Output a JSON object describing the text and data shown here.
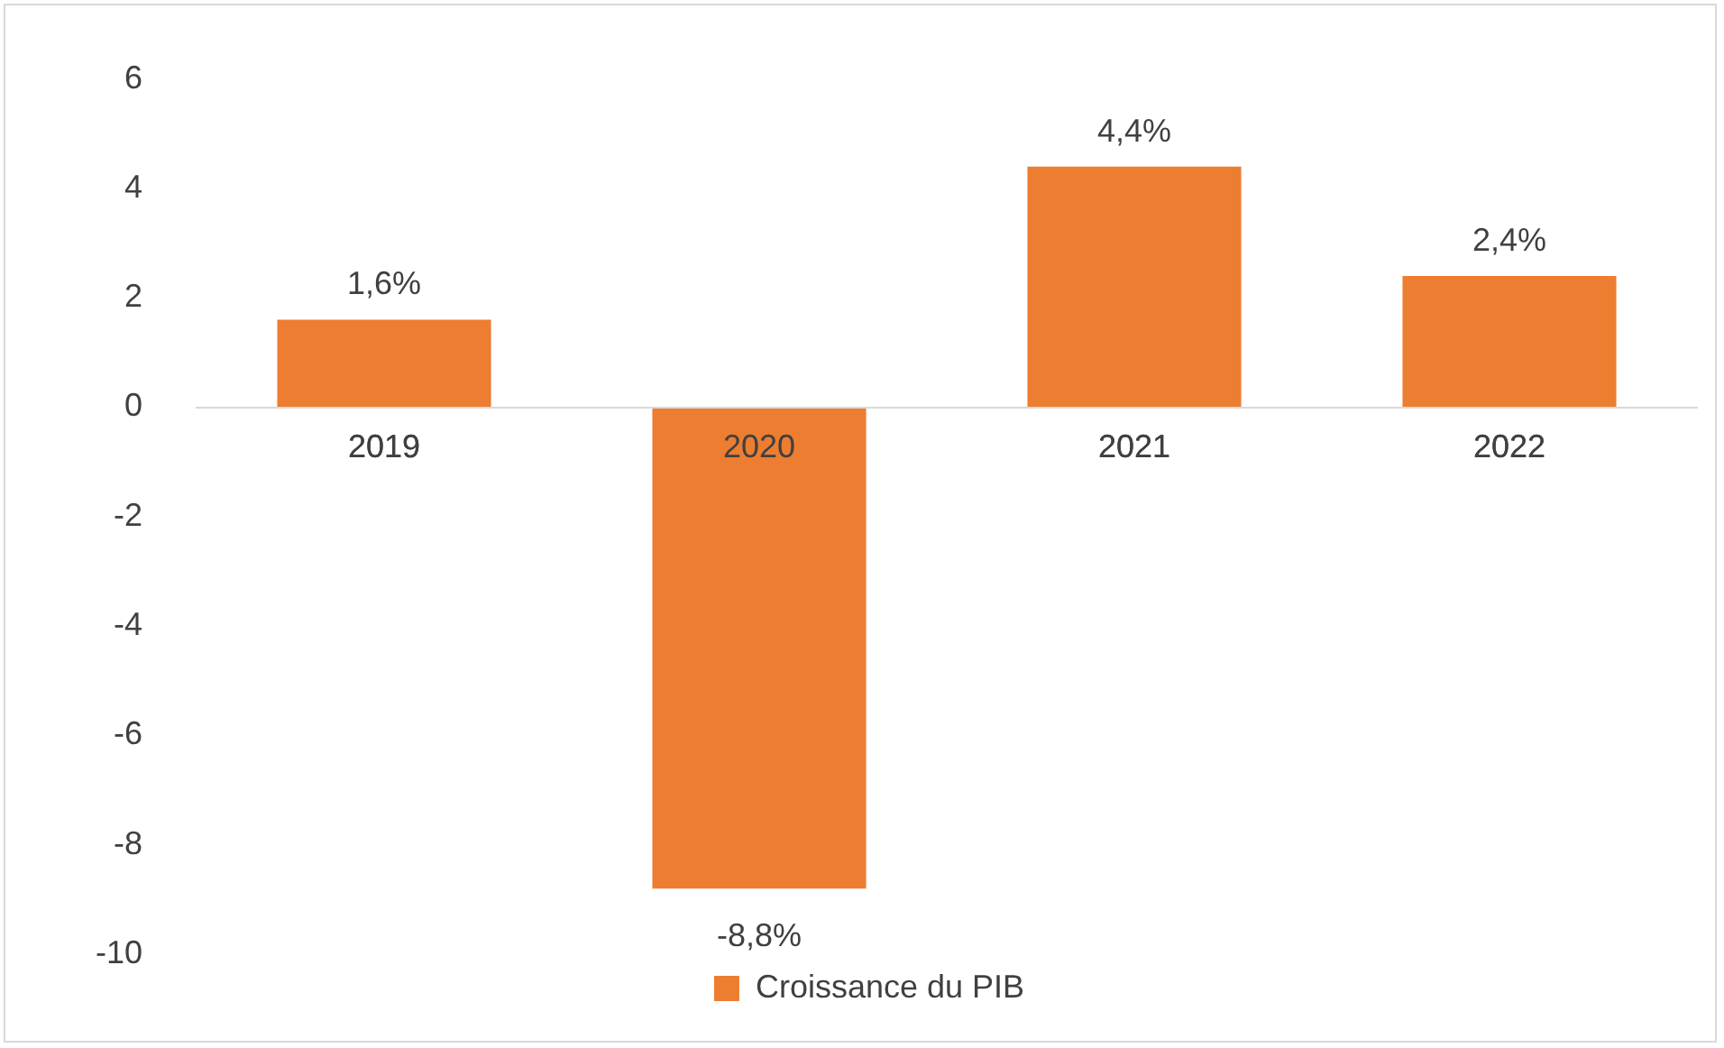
{
  "chart_data": {
    "type": "bar",
    "categories": [
      "2019",
      "2020",
      "2021",
      "2022"
    ],
    "series": [
      {
        "name": "Croissance du PIB",
        "color": "#ed7d31",
        "values": [
          1.6,
          -8.8,
          4.4,
          2.4
        ],
        "value_labels": [
          "1,6%",
          "-8,8%",
          "4,4%",
          "2,4%"
        ]
      }
    ],
    "ylim": [
      -10,
      6
    ],
    "yticks": [
      -10,
      -8,
      -6,
      -4,
      -2,
      0,
      2,
      4,
      6
    ],
    "grid": false,
    "legend": "bottom"
  }
}
